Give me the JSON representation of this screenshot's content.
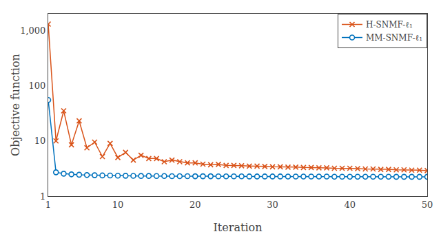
{
  "chart_data": {
    "type": "line",
    "xlabel": "Iteration",
    "ylabel": "Objective function",
    "log": "y",
    "grid": false,
    "legend": "upper right",
    "x": [
      1,
      2,
      3,
      4,
      5,
      6,
      7,
      8,
      9,
      10,
      11,
      12,
      13,
      14,
      15,
      16,
      17,
      18,
      19,
      20,
      21,
      22,
      23,
      24,
      25,
      26,
      27,
      28,
      29,
      30,
      31,
      32,
      33,
      34,
      35,
      36,
      37,
      38,
      39,
      40,
      41,
      42,
      43,
      44,
      45,
      46,
      47,
      48,
      49,
      50
    ],
    "xlim": [
      1,
      50
    ],
    "xticks": [
      1,
      10,
      20,
      30,
      40,
      50
    ],
    "ylim": [
      1.0,
      2000
    ],
    "yticks": [
      1,
      10,
      100,
      {
        "value": 1000,
        "label": "1,000"
      }
    ],
    "series": [
      {
        "name": "H-SNMF-ℓ₁",
        "color": "#d95319",
        "marker": "x",
        "values": [
          1300,
          10.0,
          35.0,
          8.5,
          23.0,
          7.5,
          9.5,
          5.2,
          9.0,
          5.0,
          6.2,
          4.5,
          5.5,
          4.8,
          4.8,
          4.2,
          4.5,
          4.2,
          4.0,
          4.0,
          3.8,
          3.7,
          3.75,
          3.6,
          3.6,
          3.55,
          3.5,
          3.5,
          3.45,
          3.4,
          3.4,
          3.35,
          3.35,
          3.3,
          3.3,
          3.25,
          3.25,
          3.2,
          3.2,
          3.2,
          3.15,
          3.1,
          3.1,
          3.05,
          3.05,
          3.0,
          3.0,
          2.95,
          2.95,
          2.9
        ]
      },
      {
        "name": "MM-SNMF-ℓ₁",
        "color": "#0072bd",
        "marker": "circle-open",
        "values": [
          55,
          2.7,
          2.55,
          2.48,
          2.44,
          2.41,
          2.39,
          2.37,
          2.36,
          2.35,
          2.34,
          2.33,
          2.32,
          2.32,
          2.31,
          2.31,
          2.3,
          2.3,
          2.3,
          2.29,
          2.29,
          2.29,
          2.28,
          2.28,
          2.28,
          2.28,
          2.27,
          2.27,
          2.27,
          2.27,
          2.27,
          2.26,
          2.26,
          2.26,
          2.26,
          2.26,
          2.26,
          2.25,
          2.25,
          2.25,
          2.25,
          2.25,
          2.25,
          2.25,
          2.25,
          2.24,
          2.24,
          2.24,
          2.24,
          2.24
        ]
      }
    ]
  }
}
